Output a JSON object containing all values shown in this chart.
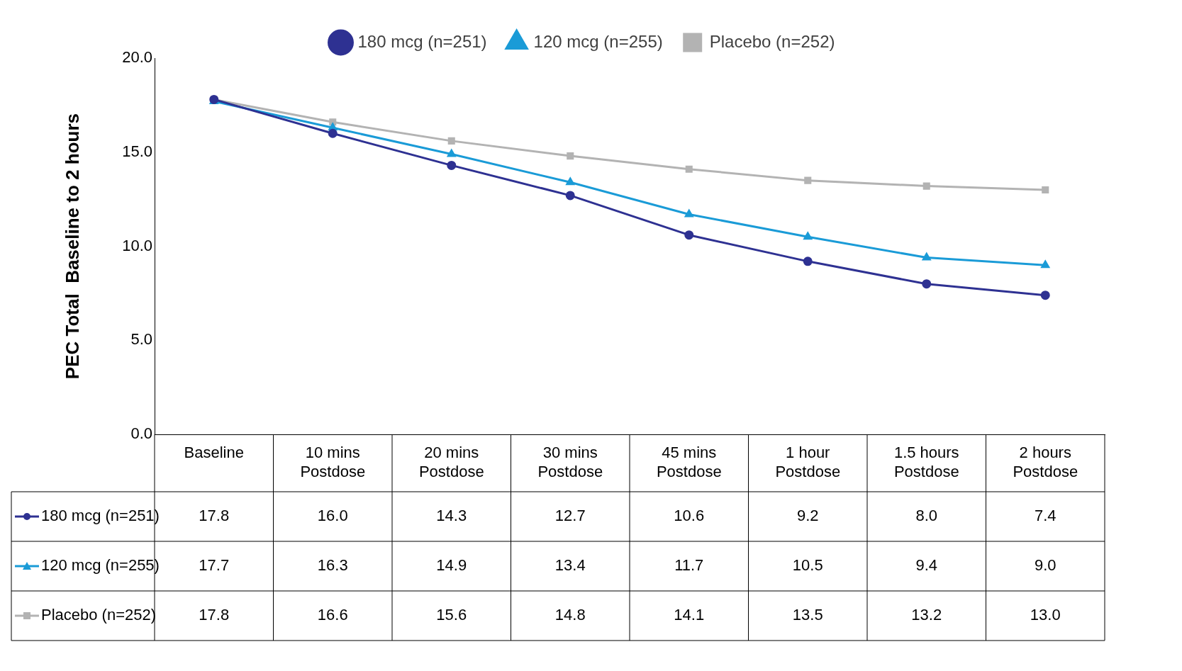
{
  "chart_data": {
    "type": "line",
    "ylabel": "PEC Total  Baseline to 2 hours",
    "categories": [
      "Baseline",
      "10 mins Postdose",
      "20 mins Postdose",
      "30 mins Postdose",
      "45 mins Postdose",
      "1 hour Postdose",
      "1.5 hours Postdose",
      "2 hours Postdose"
    ],
    "series": [
      {
        "name": "180 mcg (n=251)",
        "color": "#2e3192",
        "marker": "circle",
        "values": [
          17.8,
          16.0,
          14.3,
          12.7,
          10.6,
          9.2,
          8.0,
          7.4
        ],
        "value_labels": [
          "17.8",
          "16.0",
          "14.3",
          "12.7",
          "10.6",
          "9.2",
          "8.0",
          "7.4"
        ]
      },
      {
        "name": "120 mcg (n=255)",
        "color": "#1a9bd7",
        "marker": "triangle",
        "values": [
          17.7,
          16.3,
          14.9,
          13.4,
          11.7,
          10.5,
          9.4,
          9.0
        ],
        "value_labels": [
          "17.7",
          "16.3",
          "14.9",
          "13.4",
          "11.7",
          "10.5",
          "9.4",
          "9.0"
        ]
      },
      {
        "name": "Placebo (n=252)",
        "color": "#b3b3b3",
        "marker": "square",
        "values": [
          17.8,
          16.6,
          15.6,
          14.8,
          14.1,
          13.5,
          13.2,
          13.0
        ],
        "value_labels": [
          "17.8",
          "16.6",
          "15.6",
          "14.8",
          "14.1",
          "13.5",
          "13.2",
          "13.0"
        ]
      }
    ],
    "ylim": [
      0,
      20
    ],
    "yticks": [
      {
        "value": 0,
        "label": "0.0"
      },
      {
        "value": 5,
        "label": "5.0"
      },
      {
        "value": 10,
        "label": "10.0"
      },
      {
        "value": 15,
        "label": "15.0"
      },
      {
        "value": 20,
        "label": "20.0"
      }
    ],
    "legend": "top"
  }
}
